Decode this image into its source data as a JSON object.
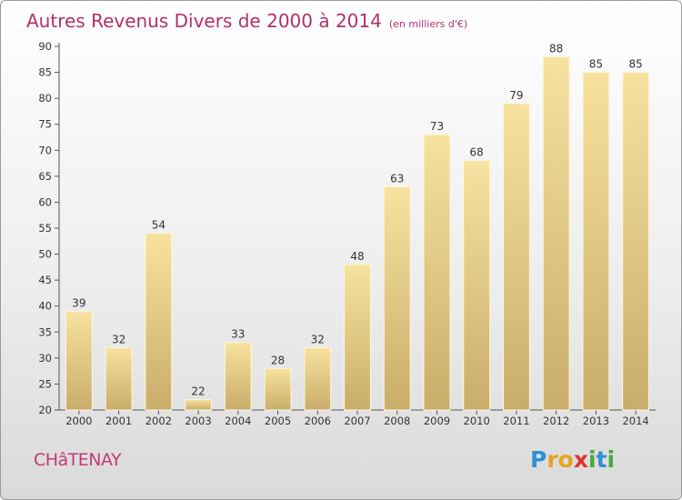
{
  "header": {
    "title": "Autres Revenus Divers de 2000 à 2014",
    "unit": "(en milliers d'€)"
  },
  "footer": {
    "city": "CHâTENAY",
    "logo_letters": [
      {
        "char": "P",
        "color": "#2f8fd8"
      },
      {
        "char": "r",
        "color": "#e8a21c"
      },
      {
        "char": "o",
        "color": "#e8a21c"
      },
      {
        "char": "x",
        "color": "#d9362b"
      },
      {
        "char": "i",
        "color": "#4aa83c"
      },
      {
        "char": "t",
        "color": "#2f8fd8"
      },
      {
        "char": "i",
        "color": "#4aa83c"
      }
    ]
  },
  "chart_data": {
    "type": "bar",
    "title": "Autres Revenus Divers de 2000 à 2014",
    "subtitle": "(en milliers d'€)",
    "categories": [
      "2000",
      "2001",
      "2002",
      "2003",
      "2004",
      "2005",
      "2006",
      "2007",
      "2008",
      "2009",
      "2010",
      "2011",
      "2012",
      "2013",
      "2014"
    ],
    "values": [
      39,
      32,
      54,
      22,
      33,
      28,
      32,
      48,
      63,
      73,
      68,
      79,
      88,
      85,
      85
    ],
    "ylim": [
      20,
      90
    ],
    "yticks": [
      20,
      25,
      30,
      35,
      40,
      45,
      50,
      55,
      60,
      65,
      70,
      75,
      80,
      85,
      90
    ],
    "grid": false,
    "bar_color": "#e8cf88"
  }
}
